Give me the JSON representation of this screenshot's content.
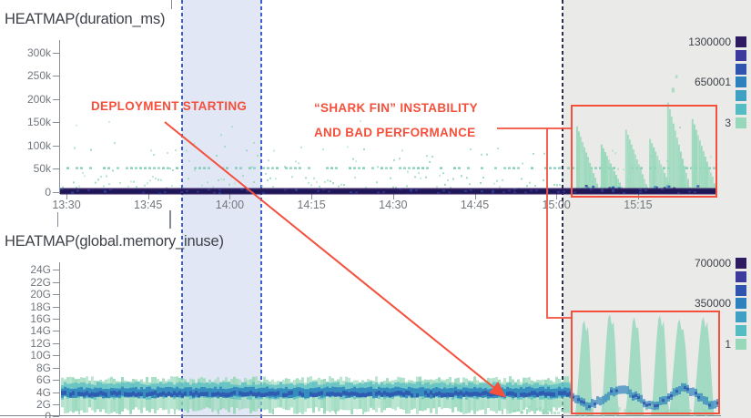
{
  "annotations": {
    "deployment_label": "DEPLOYMENT STARTING",
    "sharkfin_label_line1": "“SHARK FIN” INSTABILITY",
    "sharkfin_label_line2": "AND BAD PERFORMANCE",
    "accent_color": "#f4503c"
  },
  "regions": {
    "deployment_window": {
      "from": "13:51",
      "to": "14:05",
      "fill": "#e2e7f5",
      "border_color": "#3d5ecf",
      "border_style": "dashed"
    },
    "instability_window": {
      "from": "15:01",
      "to": "end-of-range",
      "fill": "#eaeae8",
      "border_color": "#2a3053",
      "border_style": "dashed"
    }
  },
  "legend_colors": [
    "#2e1a60",
    "#3c3a9c",
    "#2f55ae",
    "#2d82bd",
    "#3fa0c4",
    "#55bcc3",
    "#96d8b9"
  ],
  "chart_data": [
    {
      "type": "heatmap",
      "title": "HEATMAP(duration_ms)",
      "x_ticks": [
        "13:30",
        "13:45",
        "14:00",
        "14:15",
        "14:30",
        "14:45",
        "15:00",
        "15:15"
      ],
      "y_ticks": [
        "300k",
        "250k",
        "200k",
        "150k",
        "100k",
        "50k",
        "0"
      ],
      "y_range_ms": [
        0,
        320000
      ],
      "legend": {
        "scale_labels": [
          "1300000",
          "650001",
          "3"
        ]
      },
      "steady_state": {
        "dense_band_ms": [
          0,
          8000
        ],
        "scatter_band_ms": [
          8000,
          60000
        ],
        "speckle_row_ms": 57000
      },
      "shark_fins": [
        {
          "t_min_after_1500": 3.8,
          "peak_ms": 143000
        },
        {
          "t_min_after_1500": 8.3,
          "peak_ms": 104000
        },
        {
          "t_min_after_1500": 12.8,
          "peak_ms": 136000
        },
        {
          "t_min_after_1500": 17.2,
          "peak_ms": 116000
        },
        {
          "t_min_after_1500": 20.5,
          "peak_ms": 195000
        },
        {
          "t_min_after_1500": 25.0,
          "peak_ms": 159000
        }
      ]
    },
    {
      "type": "heatmap",
      "title": "HEATMAP(global.memory_inuse)",
      "x_ticks": [],
      "y_ticks": [
        "24G",
        "22G",
        "20G",
        "18G",
        "16G",
        "14G",
        "12G",
        "10G",
        "8G",
        "6G",
        "4G",
        "2G",
        "0"
      ],
      "y_range_gb": [
        0,
        25
      ],
      "legend": {
        "scale_labels": [
          "700000",
          "350000",
          "1"
        ]
      },
      "steady_state": {
        "band_gb": [
          1.8,
          6.3
        ],
        "core_gb": 4
      },
      "shark_fins": [
        {
          "t_min_after_1500": 5.3,
          "peak_gb": 15.7
        },
        {
          "t_min_after_1500": 10.0,
          "peak_gb": 16.7
        },
        {
          "t_min_after_1500": 14.5,
          "peak_gb": 16.2
        },
        {
          "t_min_after_1500": 19.2,
          "peak_gb": 16.5
        },
        {
          "t_min_after_1500": 22.8,
          "peak_gb": 15.9
        },
        {
          "t_min_after_1500": 27.2,
          "peak_gb": 16.3
        }
      ]
    }
  ]
}
